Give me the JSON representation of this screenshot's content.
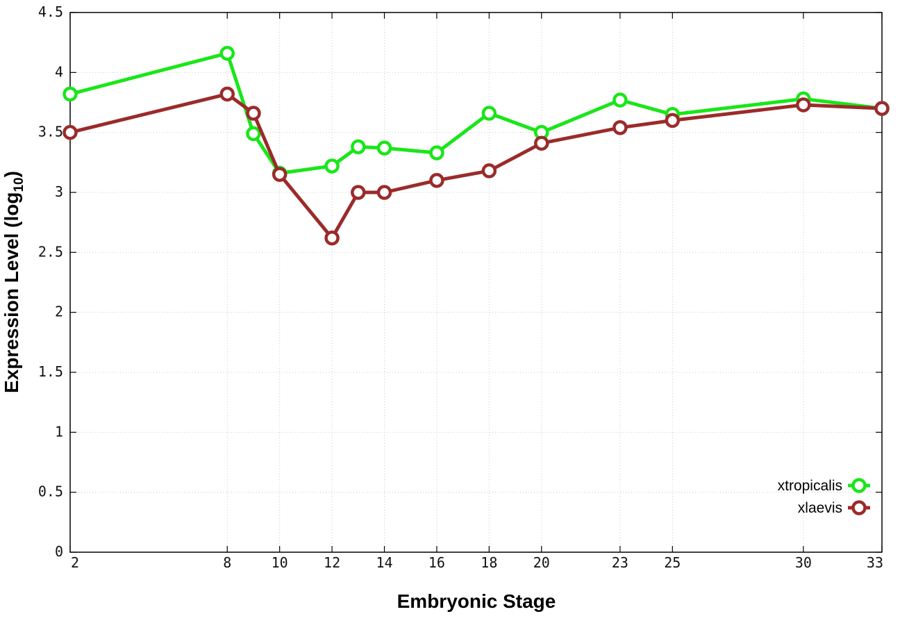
{
  "chart_data": {
    "type": "line",
    "title": "",
    "xlabel": "Embryonic Stage",
    "ylabel": {
      "main": "Expression Level (log",
      "subscript": "10",
      "suffix": ")"
    },
    "x_tick_labels": [
      "2",
      "8",
      "10",
      "12",
      "14",
      "16",
      "18",
      "20",
      "23",
      "25",
      "30",
      "33"
    ],
    "y_tick_labels": [
      "0",
      "0.5",
      "1",
      "1.5",
      "2",
      "2.5",
      "3",
      "3.5",
      "4",
      "4.5"
    ],
    "xlim": [
      2,
      33
    ],
    "ylim": [
      0,
      4.5
    ],
    "grid": true,
    "legend_position": "bottom-right",
    "series": [
      {
        "name": "xtropicalis",
        "color": "#19e619",
        "marker": "open-circle",
        "x": [
          2,
          8,
          9,
          10,
          12,
          13,
          14,
          16,
          18,
          20,
          23,
          25,
          30,
          33
        ],
        "y": [
          3.82,
          4.16,
          3.49,
          3.16,
          3.22,
          3.38,
          3.37,
          3.33,
          3.66,
          3.5,
          3.77,
          3.65,
          3.78,
          3.7
        ]
      },
      {
        "name": "xlaevis",
        "color": "#9b2b2b",
        "marker": "open-circle",
        "x": [
          2,
          8,
          9,
          10,
          12,
          13,
          14,
          16,
          18,
          20,
          23,
          25,
          30,
          33
        ],
        "y": [
          3.5,
          3.82,
          3.66,
          3.15,
          2.62,
          3.0,
          3.0,
          3.1,
          3.18,
          3.41,
          3.54,
          3.6,
          3.73,
          3.7
        ]
      }
    ]
  }
}
